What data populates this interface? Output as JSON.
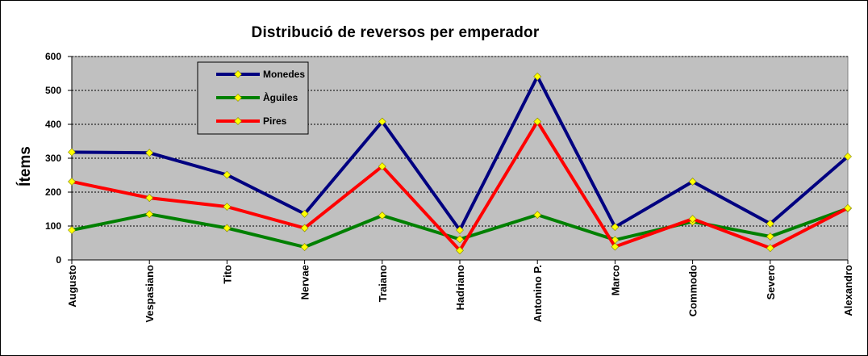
{
  "chart_data": {
    "type": "line",
    "title": "Distribució  de reversos per emperador",
    "ylabel": "Ítems",
    "xlabel": "",
    "ylim": [
      0,
      600
    ],
    "yticks": [
      "0",
      "100",
      "200",
      "300",
      "400",
      "500",
      "600"
    ],
    "grid": "horizontal dashed",
    "legend_position": "top-left",
    "plot_background": "#c0c0c0",
    "categories": [
      "Augusto",
      "Vespasiano",
      "Tito",
      "Nervae",
      "Traiano",
      "Hadriano",
      "Antonino P.",
      "Marco",
      "Commodo",
      "Severo",
      "Alexandro"
    ],
    "series": [
      {
        "name": "Monedes",
        "color": "#000080",
        "values": [
          318,
          316,
          251,
          136,
          408,
          88,
          541,
          97,
          231,
          107,
          305
        ]
      },
      {
        "name": "Àguiles",
        "color": "#008000",
        "values": [
          88,
          135,
          94,
          38,
          131,
          61,
          133,
          59,
          113,
          69,
          152
        ]
      },
      {
        "name": "Pires",
        "color": "#ff0000",
        "values": [
          231,
          183,
          157,
          94,
          276,
          28,
          408,
          39,
          121,
          35,
          153
        ]
      }
    ],
    "marker_color": "#ffff00"
  }
}
